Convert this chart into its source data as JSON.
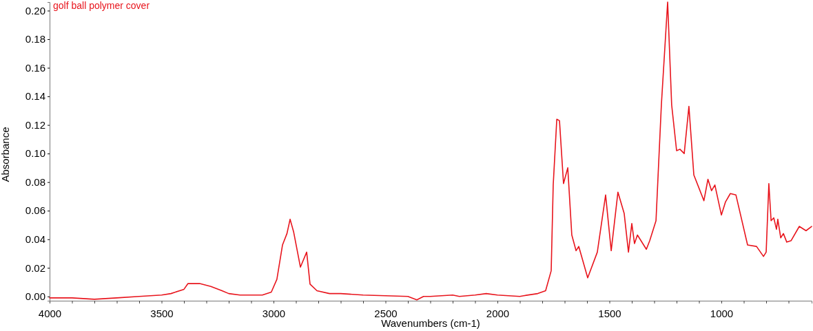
{
  "chart_data": {
    "type": "line",
    "title": "golf ball polymer cover",
    "xlabel": "Wavenumbers (cm-1)",
    "ylabel": "Absorbance",
    "xlim": [
      4000,
      597
    ],
    "ylim": [
      -0.003,
      0.206
    ],
    "xticks": [
      4000,
      {
        "value": 3900,
        "label": null
      },
      {
        "value": 3800,
        "label": null
      },
      {
        "value": 3700,
        "label": null
      },
      {
        "value": 3600,
        "label": null
      },
      3500,
      {
        "value": 3400,
        "label": null
      },
      {
        "value": 3300,
        "label": null
      },
      {
        "value": 3200,
        "label": null
      },
      {
        "value": 3100,
        "label": null
      },
      3000,
      {
        "value": 2900,
        "label": null
      },
      {
        "value": 2800,
        "label": null
      },
      {
        "value": 2700,
        "label": null
      },
      {
        "value": 2600,
        "label": null
      },
      2500,
      {
        "value": 2400,
        "label": null
      },
      {
        "value": 2300,
        "label": null
      },
      {
        "value": 2200,
        "label": null
      },
      {
        "value": 2100,
        "label": null
      },
      2000,
      {
        "value": 1900,
        "label": null
      },
      {
        "value": 1800,
        "label": null
      },
      {
        "value": 1700,
        "label": null
      },
      {
        "value": 1600,
        "label": null
      },
      1500,
      {
        "value": 1400,
        "label": null
      },
      {
        "value": 1300,
        "label": null
      },
      {
        "value": 1200,
        "label": null
      },
      {
        "value": 1100,
        "label": null
      },
      1000,
      {
        "value": 900,
        "label": null
      },
      {
        "value": 800,
        "label": null
      },
      {
        "value": 700,
        "label": null
      }
    ],
    "yticks": [
      {
        "value": 0,
        "label": "0.00"
      },
      {
        "value": 0.02,
        "label": "0.02"
      },
      {
        "value": 0.04,
        "label": "0.04"
      },
      {
        "value": 0.06,
        "label": "0.06"
      },
      {
        "value": 0.08,
        "label": "0.08"
      },
      {
        "value": 0.1,
        "label": "0.10"
      },
      {
        "value": 0.12,
        "label": "0.12"
      },
      {
        "value": 0.14,
        "label": "0.14"
      },
      {
        "value": 0.16,
        "label": "0.16"
      },
      {
        "value": 0.18,
        "label": "0.18"
      },
      {
        "value": 0.2,
        "label": "0.20"
      }
    ],
    "grid": false,
    "marker": "none",
    "line_style": "solid",
    "series": [
      {
        "color": "#e8141c",
        "x": [
          4000,
          3900,
          3800,
          3700,
          3600,
          3500,
          3458,
          3400,
          3382,
          3330,
          3280,
          3230,
          3200,
          3150,
          3100,
          3050,
          3010,
          2985,
          2960,
          2940,
          2926,
          2910,
          2880,
          2852,
          2837,
          2806,
          2750,
          2700,
          2600,
          2500,
          2400,
          2360,
          2330,
          2300,
          2200,
          2170,
          2100,
          2050,
          2000,
          1950,
          1900,
          1883,
          1820,
          1785,
          1760,
          1751,
          1735,
          1723,
          1705,
          1686,
          1668,
          1649,
          1637,
          1597,
          1554,
          1517,
          1492,
          1462,
          1434,
          1415,
          1400,
          1388,
          1375,
          1335,
          1320,
          1292,
          1268,
          1240,
          1222,
          1200,
          1185,
          1166,
          1145,
          1123,
          1078,
          1060,
          1044,
          1029,
          1000,
          982,
          960,
          935,
          883,
          843,
          812,
          800,
          788,
          778,
          766,
          754,
          748,
          735,
          723,
          708,
          689,
          652,
          622,
          597
        ],
        "values": [
          -0.001,
          -0.001,
          -0.002,
          -0.001,
          0.0,
          0.001,
          0.002,
          0.005,
          0.009,
          0.009,
          0.007,
          0.004,
          0.002,
          0.001,
          0.001,
          0.001,
          0.003,
          0.012,
          0.036,
          0.044,
          0.054,
          0.045,
          0.0205,
          0.031,
          0.0086,
          0.004,
          0.002,
          0.002,
          0.001,
          0.0005,
          0.0,
          -0.0024,
          0.0,
          0.0,
          0.001,
          0.0,
          0.001,
          0.002,
          0.001,
          0.0005,
          0.0,
          0.0005,
          0.002,
          0.004,
          0.018,
          0.078,
          0.124,
          0.123,
          0.079,
          0.09,
          0.043,
          0.032,
          0.035,
          0.013,
          0.031,
          0.071,
          0.032,
          0.073,
          0.058,
          0.031,
          0.051,
          0.037,
          0.043,
          0.033,
          0.039,
          0.053,
          0.134,
          0.206,
          0.134,
          0.102,
          0.103,
          0.1,
          0.133,
          0.085,
          0.067,
          0.082,
          0.074,
          0.078,
          0.057,
          0.066,
          0.072,
          0.071,
          0.036,
          0.035,
          0.028,
          0.031,
          0.079,
          0.053,
          0.055,
          0.047,
          0.054,
          0.041,
          0.044,
          0.038,
          0.039,
          0.049,
          0.046,
          0.049
        ]
      }
    ]
  }
}
